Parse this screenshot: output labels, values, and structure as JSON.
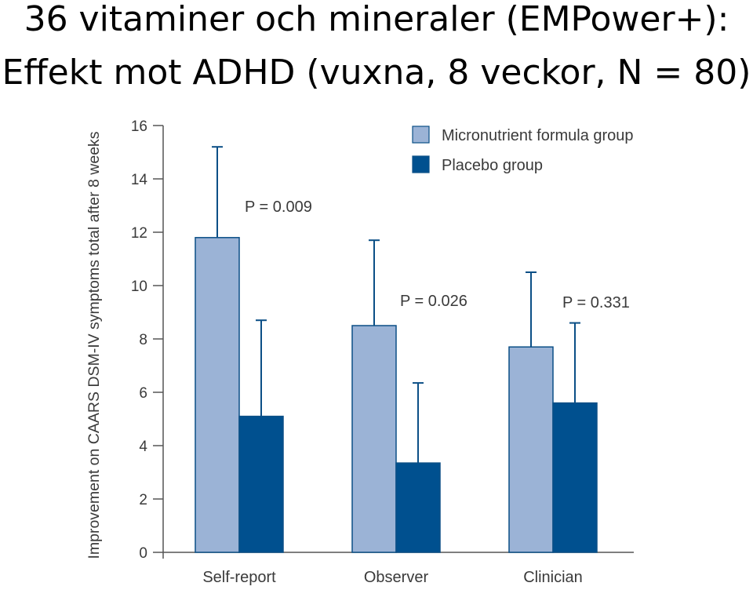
{
  "title_line1": "36 vitaminer och mineraler (EMPower+):",
  "title_line2": "Effekt mot ADHD (vuxna, 8 veckor, N = 80)",
  "chart_data": {
    "type": "bar",
    "title": "36 vitaminer och mineraler (EMPower+): Effekt mot ADHD (vuxna, 8 veckor, N = 80)",
    "ylabel": "Improvement on CAARS DSM-IV symptoms total after 8 weeks",
    "xlabel": "",
    "categories": [
      "Self-report",
      "Observer",
      "Clinician"
    ],
    "yticks": [
      "0",
      "2",
      "4",
      "6",
      "8",
      "10",
      "12",
      "14",
      "16"
    ],
    "ylim": [
      0,
      16
    ],
    "grid": false,
    "legend_position": "top-right",
    "series": [
      {
        "name": "Micronutrient formula group",
        "color": "#9bb3d6",
        "values": [
          11.8,
          8.5,
          7.7
        ],
        "error_upper": [
          15.2,
          11.7,
          10.5
        ]
      },
      {
        "name": "Placebo group",
        "color": "#00508f",
        "values": [
          5.1,
          3.35,
          5.6
        ],
        "error_upper": [
          8.7,
          6.35,
          8.6
        ]
      }
    ],
    "annotations": [
      "P = 0.009",
      "P = 0.026",
      "P = 0.331"
    ]
  }
}
